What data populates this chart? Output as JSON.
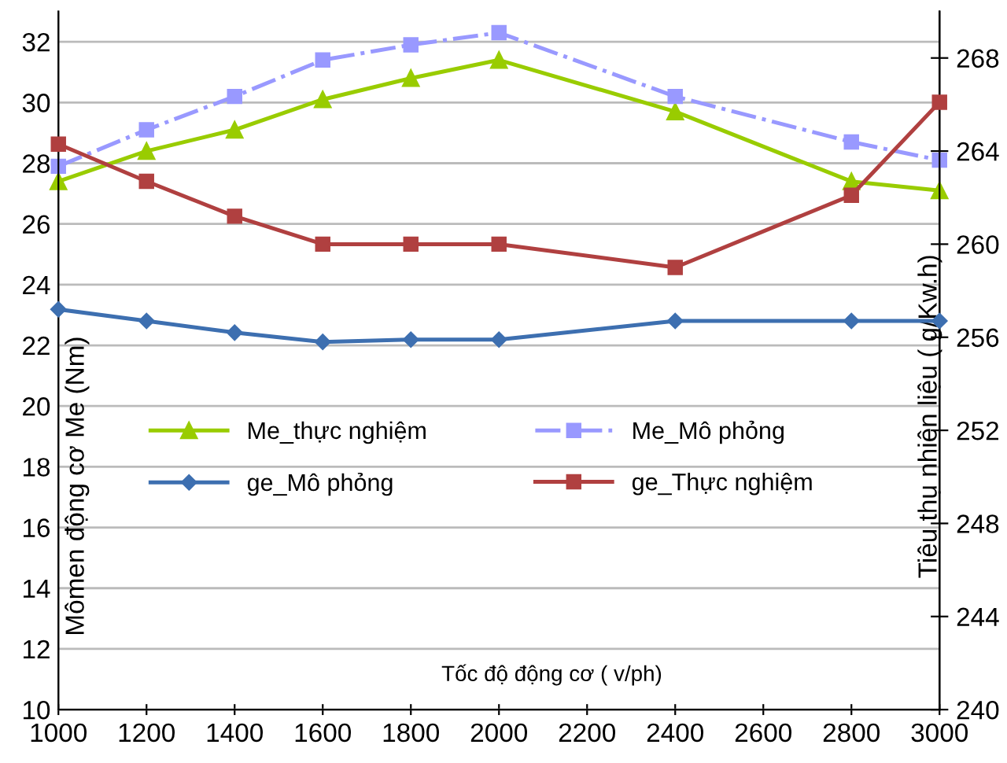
{
  "chart_data": {
    "type": "line",
    "xlabel": "Tốc độ động cơ ( v/ph)",
    "ylabel": "Mômen động cơ Me (Nm)",
    "y2label": "Tiêu thụ nhiên liệu ( g/Kw.h)",
    "x": [
      1000,
      1200,
      1400,
      1600,
      1800,
      2000,
      2400,
      2800,
      3000
    ],
    "series": [
      {
        "name": "Me_thực nghiệm",
        "color": "#99cc00",
        "marker": "triangle",
        "line_style": "solid",
        "values": [
          27.4,
          28.4,
          29.1,
          30.1,
          30.8,
          31.4,
          29.7,
          27.4,
          27.1
        ]
      },
      {
        "name": "Me_Mô phỏng",
        "color": "#9999ff",
        "marker": "square",
        "line_style": "dashdot",
        "values": [
          27.9,
          29.1,
          30.2,
          31.4,
          31.9,
          32.3,
          30.2,
          28.7,
          28.1
        ]
      },
      {
        "name": "ge_Mô phỏng",
        "color": "#3d6fb0",
        "marker": "diamond",
        "line_style": "solid",
        "axis": "y2",
        "values": [
          257.2,
          256.7,
          256.2,
          255.8,
          255.9,
          255.9,
          256.7,
          256.7,
          256.7
        ]
      },
      {
        "name": "ge_Thực nghiệm",
        "color": "#b04040",
        "marker": "square",
        "line_style": "solid",
        "axis": "y2",
        "values": [
          264.3,
          262.7,
          261.2,
          260.0,
          260.0,
          260.0,
          259.0,
          262.1,
          266.1
        ]
      }
    ],
    "xlim": [
      1000,
      3000
    ],
    "xticks": [
      1000,
      1200,
      1400,
      1600,
      1800,
      2000,
      2200,
      2400,
      2600,
      2800,
      3000
    ],
    "ylim": [
      10,
      33
    ],
    "yticks": [
      10,
      12,
      14,
      16,
      18,
      20,
      22,
      24,
      26,
      28,
      30,
      32
    ],
    "y2lim": [
      240,
      270
    ],
    "y2ticks": [
      240,
      244,
      248,
      252,
      256,
      260,
      264,
      268
    ],
    "grid": "y",
    "legend": "center left"
  }
}
